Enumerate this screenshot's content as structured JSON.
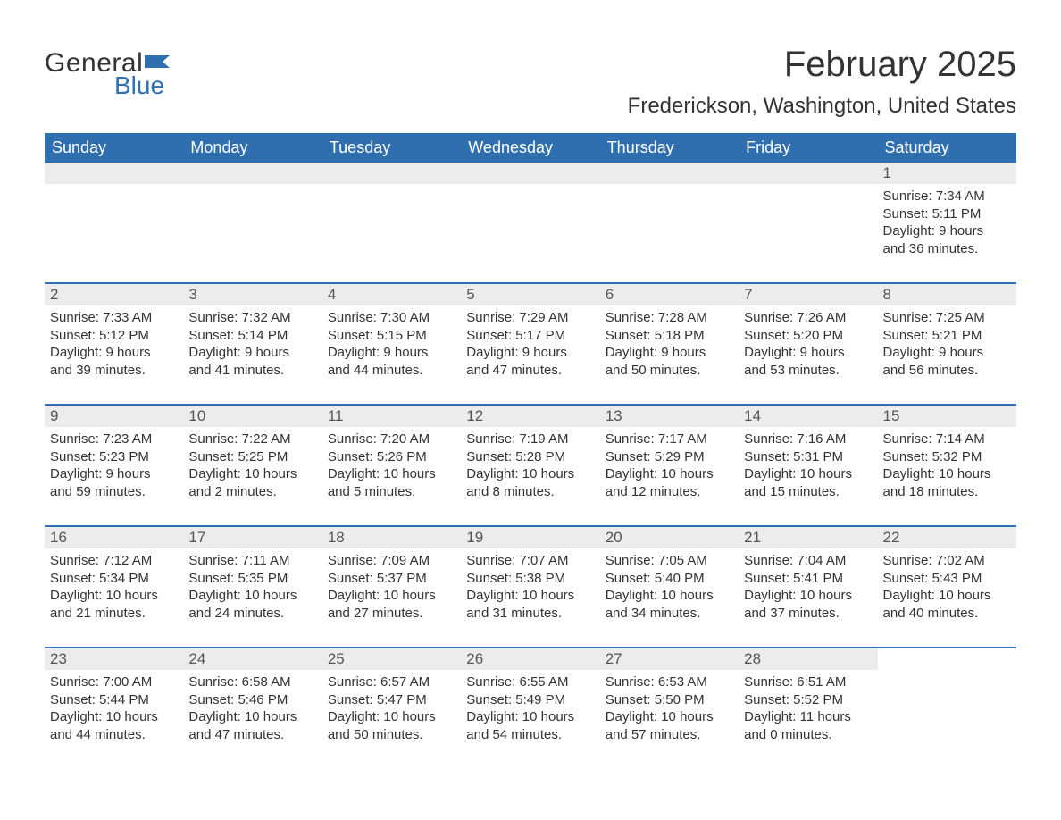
{
  "logo": {
    "text_general": "General",
    "text_blue": "Blue",
    "flag_color": "#2f6fb0"
  },
  "title": "February 2025",
  "location": "Frederickson, Washington, United States",
  "colors": {
    "header_bg": "#2f6fb0",
    "header_text": "#ffffff",
    "daynum_bg": "#ececec",
    "row_border": "#2f6fb0",
    "body_text": "#333333",
    "page_bg": "#ffffff"
  },
  "typography": {
    "title_fontsize": 40,
    "location_fontsize": 24,
    "dayheader_fontsize": 18,
    "daynum_fontsize": 17,
    "body_fontsize": 15,
    "font_family": "Arial"
  },
  "day_headers": [
    "Sunday",
    "Monday",
    "Tuesday",
    "Wednesday",
    "Thursday",
    "Friday",
    "Saturday"
  ],
  "weeks": [
    [
      {
        "day": null
      },
      {
        "day": null
      },
      {
        "day": null
      },
      {
        "day": null
      },
      {
        "day": null
      },
      {
        "day": null
      },
      {
        "day": 1,
        "sunrise": "Sunrise: 7:34 AM",
        "sunset": "Sunset: 5:11 PM",
        "daylight1": "Daylight: 9 hours",
        "daylight2": "and 36 minutes."
      }
    ],
    [
      {
        "day": 2,
        "sunrise": "Sunrise: 7:33 AM",
        "sunset": "Sunset: 5:12 PM",
        "daylight1": "Daylight: 9 hours",
        "daylight2": "and 39 minutes."
      },
      {
        "day": 3,
        "sunrise": "Sunrise: 7:32 AM",
        "sunset": "Sunset: 5:14 PM",
        "daylight1": "Daylight: 9 hours",
        "daylight2": "and 41 minutes."
      },
      {
        "day": 4,
        "sunrise": "Sunrise: 7:30 AM",
        "sunset": "Sunset: 5:15 PM",
        "daylight1": "Daylight: 9 hours",
        "daylight2": "and 44 minutes."
      },
      {
        "day": 5,
        "sunrise": "Sunrise: 7:29 AM",
        "sunset": "Sunset: 5:17 PM",
        "daylight1": "Daylight: 9 hours",
        "daylight2": "and 47 minutes."
      },
      {
        "day": 6,
        "sunrise": "Sunrise: 7:28 AM",
        "sunset": "Sunset: 5:18 PM",
        "daylight1": "Daylight: 9 hours",
        "daylight2": "and 50 minutes."
      },
      {
        "day": 7,
        "sunrise": "Sunrise: 7:26 AM",
        "sunset": "Sunset: 5:20 PM",
        "daylight1": "Daylight: 9 hours",
        "daylight2": "and 53 minutes."
      },
      {
        "day": 8,
        "sunrise": "Sunrise: 7:25 AM",
        "sunset": "Sunset: 5:21 PM",
        "daylight1": "Daylight: 9 hours",
        "daylight2": "and 56 minutes."
      }
    ],
    [
      {
        "day": 9,
        "sunrise": "Sunrise: 7:23 AM",
        "sunset": "Sunset: 5:23 PM",
        "daylight1": "Daylight: 9 hours",
        "daylight2": "and 59 minutes."
      },
      {
        "day": 10,
        "sunrise": "Sunrise: 7:22 AM",
        "sunset": "Sunset: 5:25 PM",
        "daylight1": "Daylight: 10 hours",
        "daylight2": "and 2 minutes."
      },
      {
        "day": 11,
        "sunrise": "Sunrise: 7:20 AM",
        "sunset": "Sunset: 5:26 PM",
        "daylight1": "Daylight: 10 hours",
        "daylight2": "and 5 minutes."
      },
      {
        "day": 12,
        "sunrise": "Sunrise: 7:19 AM",
        "sunset": "Sunset: 5:28 PM",
        "daylight1": "Daylight: 10 hours",
        "daylight2": "and 8 minutes."
      },
      {
        "day": 13,
        "sunrise": "Sunrise: 7:17 AM",
        "sunset": "Sunset: 5:29 PM",
        "daylight1": "Daylight: 10 hours",
        "daylight2": "and 12 minutes."
      },
      {
        "day": 14,
        "sunrise": "Sunrise: 7:16 AM",
        "sunset": "Sunset: 5:31 PM",
        "daylight1": "Daylight: 10 hours",
        "daylight2": "and 15 minutes."
      },
      {
        "day": 15,
        "sunrise": "Sunrise: 7:14 AM",
        "sunset": "Sunset: 5:32 PM",
        "daylight1": "Daylight: 10 hours",
        "daylight2": "and 18 minutes."
      }
    ],
    [
      {
        "day": 16,
        "sunrise": "Sunrise: 7:12 AM",
        "sunset": "Sunset: 5:34 PM",
        "daylight1": "Daylight: 10 hours",
        "daylight2": "and 21 minutes."
      },
      {
        "day": 17,
        "sunrise": "Sunrise: 7:11 AM",
        "sunset": "Sunset: 5:35 PM",
        "daylight1": "Daylight: 10 hours",
        "daylight2": "and 24 minutes."
      },
      {
        "day": 18,
        "sunrise": "Sunrise: 7:09 AM",
        "sunset": "Sunset: 5:37 PM",
        "daylight1": "Daylight: 10 hours",
        "daylight2": "and 27 minutes."
      },
      {
        "day": 19,
        "sunrise": "Sunrise: 7:07 AM",
        "sunset": "Sunset: 5:38 PM",
        "daylight1": "Daylight: 10 hours",
        "daylight2": "and 31 minutes."
      },
      {
        "day": 20,
        "sunrise": "Sunrise: 7:05 AM",
        "sunset": "Sunset: 5:40 PM",
        "daylight1": "Daylight: 10 hours",
        "daylight2": "and 34 minutes."
      },
      {
        "day": 21,
        "sunrise": "Sunrise: 7:04 AM",
        "sunset": "Sunset: 5:41 PM",
        "daylight1": "Daylight: 10 hours",
        "daylight2": "and 37 minutes."
      },
      {
        "day": 22,
        "sunrise": "Sunrise: 7:02 AM",
        "sunset": "Sunset: 5:43 PM",
        "daylight1": "Daylight: 10 hours",
        "daylight2": "and 40 minutes."
      }
    ],
    [
      {
        "day": 23,
        "sunrise": "Sunrise: 7:00 AM",
        "sunset": "Sunset: 5:44 PM",
        "daylight1": "Daylight: 10 hours",
        "daylight2": "and 44 minutes."
      },
      {
        "day": 24,
        "sunrise": "Sunrise: 6:58 AM",
        "sunset": "Sunset: 5:46 PM",
        "daylight1": "Daylight: 10 hours",
        "daylight2": "and 47 minutes."
      },
      {
        "day": 25,
        "sunrise": "Sunrise: 6:57 AM",
        "sunset": "Sunset: 5:47 PM",
        "daylight1": "Daylight: 10 hours",
        "daylight2": "and 50 minutes."
      },
      {
        "day": 26,
        "sunrise": "Sunrise: 6:55 AM",
        "sunset": "Sunset: 5:49 PM",
        "daylight1": "Daylight: 10 hours",
        "daylight2": "and 54 minutes."
      },
      {
        "day": 27,
        "sunrise": "Sunrise: 6:53 AM",
        "sunset": "Sunset: 5:50 PM",
        "daylight1": "Daylight: 10 hours",
        "daylight2": "and 57 minutes."
      },
      {
        "day": 28,
        "sunrise": "Sunrise: 6:51 AM",
        "sunset": "Sunset: 5:52 PM",
        "daylight1": "Daylight: 11 hours",
        "daylight2": "and 0 minutes."
      },
      {
        "day": null,
        "trailing": true
      }
    ]
  ]
}
